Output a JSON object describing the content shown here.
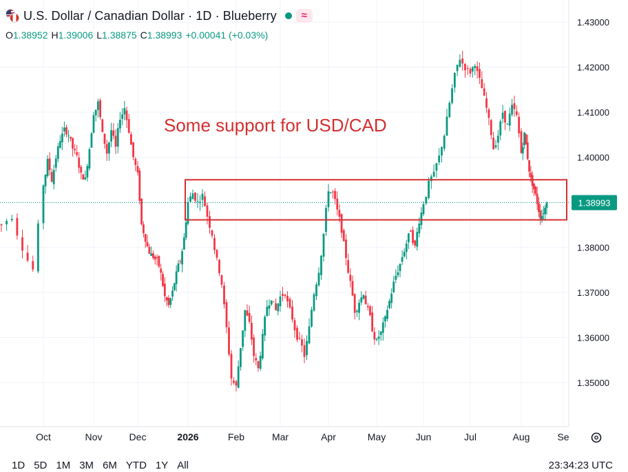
{
  "header": {
    "title": "U.S. Dollar / Canadian Dollar · 1D · Blueberry",
    "flag_icon": "us-canada-flag-icon",
    "status_icon": "market-open-dot-icon",
    "indicator_icon": "wave-indicator-icon",
    "ohlc": {
      "o_label": "O",
      "o_value": "1.38952",
      "h_label": "H",
      "h_value": "1.39006",
      "l_label": "L",
      "l_value": "1.38875",
      "c_label": "C",
      "c_value": "1.38993",
      "change": "+0.00041 (+0.03%)"
    }
  },
  "bottom": {
    "ranges": [
      "1D",
      "5D",
      "1M",
      "3M",
      "6M",
      "YTD",
      "1Y",
      "All"
    ],
    "clock": "23:34:23 UTC",
    "settings_icon": "gear-icon"
  },
  "colors": {
    "up": "#089981",
    "down": "#f23645",
    "annotation": "#d32f2f",
    "price_label_bg": "#089981"
  },
  "chart_data": {
    "type": "candlestick",
    "instrument": "U.S. Dollar / Canadian Dollar",
    "interval": "1D",
    "y_ticks": [
      "1.43000",
      "1.42000",
      "1.41000",
      "1.40000",
      "1.39000",
      "1.38000",
      "1.37000",
      "1.36000",
      "1.35000"
    ],
    "y_tick_values": [
      1.43,
      1.42,
      1.41,
      1.4,
      1.39,
      1.38,
      1.37,
      1.36,
      1.35
    ],
    "ylim": [
      1.3415,
      1.4325
    ],
    "x_ticks": [
      "Oct",
      "Nov",
      "Dec",
      "2026",
      "Feb",
      "Mar",
      "Apr",
      "May",
      "Jun",
      "Jul",
      "Aug",
      "Se"
    ],
    "last_price": "1.38993",
    "last_price_value": 1.38993,
    "grid": true,
    "annotation_text": "Some support for USD/CAD",
    "support_zone": {
      "low": 1.3861,
      "high": 1.395,
      "from": "2026",
      "to": "Se"
    },
    "path": [
      [
        "",
        1.385
      ],
      [
        "",
        1.387
      ],
      [
        "",
        1.38
      ],
      [
        "",
        1.375
      ],
      [
        "Oct",
        1.394
      ],
      [
        "",
        1.399
      ],
      [
        "",
        1.395
      ],
      [
        "",
        1.4
      ],
      [
        "",
        1.404
      ],
      [
        "",
        1.406
      ],
      [
        "",
        1.405
      ],
      [
        "",
        1.402
      ],
      [
        "",
        1.4
      ],
      [
        "",
        1.396
      ],
      [
        "",
        1.395
      ],
      [
        "",
        1.402
      ],
      [
        "Nov",
        1.41
      ],
      [
        "",
        1.412
      ],
      [
        "",
        1.405
      ],
      [
        "",
        1.401
      ],
      [
        "",
        1.406
      ],
      [
        "",
        1.402
      ],
      [
        "",
        1.409
      ],
      [
        "",
        1.411
      ],
      [
        "",
        1.406
      ],
      [
        "",
        1.4
      ],
      [
        "Dec",
        1.396
      ],
      [
        "",
        1.385
      ],
      [
        "",
        1.382
      ],
      [
        "",
        1.379
      ],
      [
        "",
        1.378
      ],
      [
        "",
        1.377
      ],
      [
        "",
        1.374
      ],
      [
        "",
        1.369
      ],
      [
        "",
        1.367
      ],
      [
        "",
        1.37
      ],
      [
        "",
        1.374
      ],
      [
        "",
        1.377
      ],
      [
        "",
        1.382
      ],
      [
        "2026",
        1.39
      ],
      [
        "",
        1.392
      ],
      [
        "",
        1.39
      ],
      [
        "",
        1.3915
      ],
      [
        "",
        1.387
      ],
      [
        "",
        1.383
      ],
      [
        "",
        1.377
      ],
      [
        "",
        1.372
      ],
      [
        "",
        1.362
      ],
      [
        "",
        1.351
      ],
      [
        "Feb",
        1.349
      ],
      [
        "",
        1.358
      ],
      [
        "",
        1.366
      ],
      [
        "",
        1.363
      ],
      [
        "",
        1.356
      ],
      [
        "",
        1.353
      ],
      [
        "",
        1.36
      ],
      [
        "",
        1.367
      ],
      [
        "",
        1.369
      ],
      [
        "",
        1.366
      ],
      [
        "Mar",
        1.369
      ],
      [
        "",
        1.37
      ],
      [
        "",
        1.366
      ],
      [
        "",
        1.362
      ],
      [
        "",
        1.359
      ],
      [
        "",
        1.356
      ],
      [
        "",
        1.362
      ],
      [
        "",
        1.37
      ],
      [
        "",
        1.375
      ],
      [
        "",
        1.383
      ],
      [
        "Apr",
        1.393
      ],
      [
        "",
        1.392
      ],
      [
        "",
        1.388
      ],
      [
        "",
        1.384
      ],
      [
        "",
        1.378
      ],
      [
        "",
        1.372
      ],
      [
        "",
        1.366
      ],
      [
        "",
        1.368
      ],
      [
        "",
        1.37
      ],
      [
        "",
        1.366
      ],
      [
        "",
        1.362
      ],
      [
        "May",
        1.359
      ],
      [
        "",
        1.361
      ],
      [
        "",
        1.364
      ],
      [
        "",
        1.368
      ],
      [
        "",
        1.372
      ],
      [
        "",
        1.375
      ],
      [
        "",
        1.378
      ],
      [
        "",
        1.381
      ],
      [
        "",
        1.384
      ],
      [
        "",
        1.38
      ],
      [
        "",
        1.386
      ],
      [
        "Jun",
        1.39
      ],
      [
        "",
        1.394
      ],
      [
        "",
        1.396
      ],
      [
        "",
        1.4
      ],
      [
        "",
        1.405
      ],
      [
        "",
        1.412
      ],
      [
        "",
        1.418
      ],
      [
        "",
        1.422
      ],
      [
        "",
        1.42
      ],
      [
        "Jul",
        1.419
      ],
      [
        "",
        1.421
      ],
      [
        "",
        1.417
      ],
      [
        "",
        1.413
      ],
      [
        "",
        1.408
      ],
      [
        "",
        1.402
      ],
      [
        "",
        1.405
      ],
      [
        "",
        1.41
      ],
      [
        "",
        1.407
      ],
      [
        "",
        1.411
      ],
      [
        "",
        1.409
      ],
      [
        "Aug",
        1.401
      ],
      [
        "",
        1.405
      ],
      [
        "",
        1.4
      ],
      [
        "",
        1.395
      ],
      [
        "",
        1.393
      ],
      [
        "",
        1.39
      ],
      [
        "",
        1.387
      ],
      [
        "",
        1.388
      ],
      [
        "",
        1.3899
      ]
    ]
  }
}
